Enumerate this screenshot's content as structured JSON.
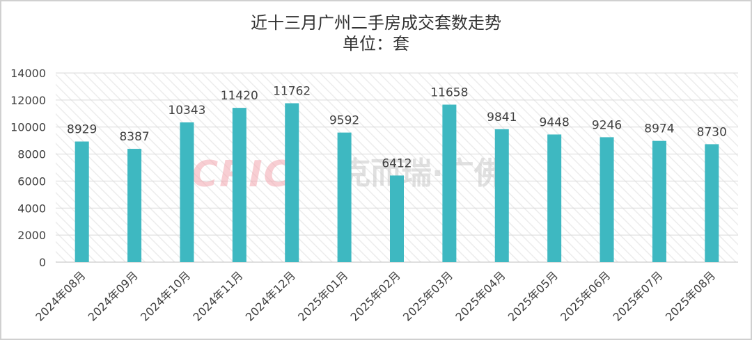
{
  "chart_data": {
    "type": "bar",
    "title": "近十三月广州二手房成交套数走势",
    "subtitle": "单位：套",
    "categories": [
      "2024年08月",
      "2024年09月",
      "2024年10月",
      "2024年11月",
      "2024年12月",
      "2025年01月",
      "2025年02月",
      "2025年03月",
      "2025年04月",
      "2025年05月",
      "2025年06月",
      "2025年07月",
      "2025年08月"
    ],
    "series": [
      {
        "values": [
          8929,
          8387,
          10343,
          11420,
          11762,
          9592,
          6412,
          11658,
          9841,
          9448,
          9246,
          8974,
          8730
        ]
      }
    ],
    "ylim": [
      0,
      14000
    ],
    "yticks": [
      0,
      2000,
      4000,
      6000,
      8000,
      10000,
      12000,
      14000
    ],
    "grid": true,
    "bar_color": "#3eb8c1",
    "watermark": "CRIC克而瑞·广佛"
  }
}
